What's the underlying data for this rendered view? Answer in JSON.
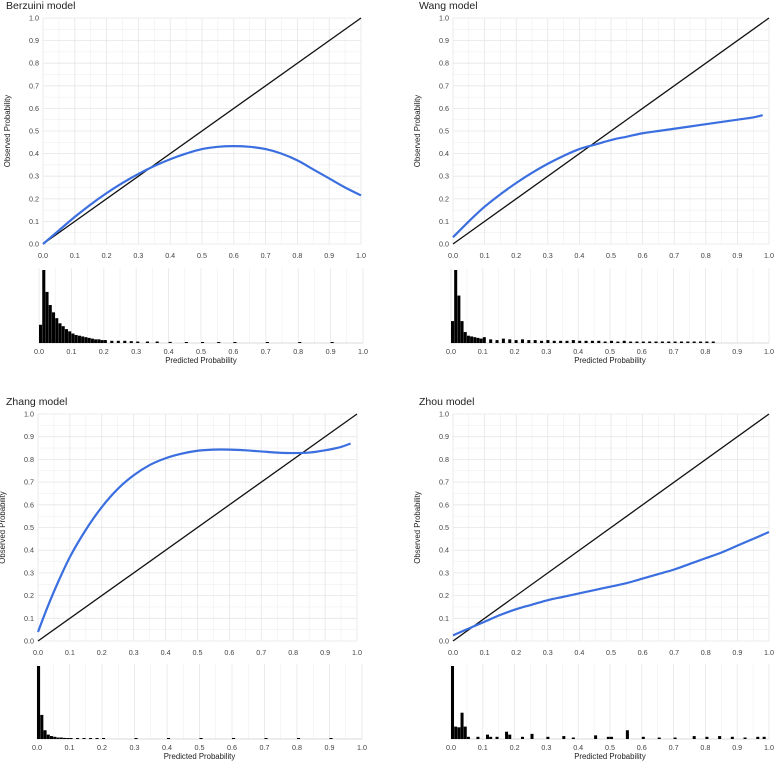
{
  "chart_data": [
    {
      "type": "line",
      "title": "Berzuini model",
      "xlabel": "",
      "ylabel": "Observed Probability",
      "xlim": [
        0,
        1
      ],
      "ylim": [
        0,
        1
      ],
      "xticks": [
        "0.0",
        "0.1",
        "0.2",
        "0.3",
        "0.4",
        "0.5",
        "0.6",
        "0.7",
        "0.8",
        "0.9",
        "1.0"
      ],
      "yticks": [
        "0.0",
        "0.1",
        "0.2",
        "0.3",
        "0.4",
        "0.5",
        "0.6",
        "0.7",
        "0.8",
        "0.9",
        "1.0"
      ],
      "grid": true,
      "colors": {
        "calibration": "#3b6fe0",
        "reference": "#111111",
        "histogram": "#000000",
        "grid": "#e6e6e6"
      },
      "reference_line": {
        "x": [
          0,
          1
        ],
        "y": [
          0,
          1
        ]
      },
      "calibration_curve": {
        "x": [
          0.0,
          0.05,
          0.1,
          0.15,
          0.2,
          0.25,
          0.3,
          0.35,
          0.4,
          0.45,
          0.5,
          0.55,
          0.6,
          0.65,
          0.7,
          0.75,
          0.8,
          0.85,
          0.9,
          0.95,
          1.0
        ],
        "y": [
          0.0,
          0.06,
          0.12,
          0.175,
          0.225,
          0.27,
          0.31,
          0.345,
          0.375,
          0.4,
          0.42,
          0.43,
          0.433,
          0.43,
          0.42,
          0.4,
          0.37,
          0.33,
          0.29,
          0.25,
          0.215
        ]
      },
      "histogram": {
        "xlabel": "Predicted Probability",
        "xlim": [
          0,
          1
        ],
        "xticks": [
          "0.0",
          "0.1",
          "0.2",
          "0.3",
          "0.4",
          "0.5",
          "0.6",
          "0.7",
          "0.8",
          "0.9",
          "1.0"
        ],
        "bin_width": 0.01,
        "x": [
          0.0,
          0.01,
          0.02,
          0.03,
          0.04,
          0.05,
          0.06,
          0.07,
          0.08,
          0.09,
          0.1,
          0.11,
          0.12,
          0.13,
          0.14,
          0.15,
          0.16,
          0.17,
          0.18,
          0.19,
          0.2,
          0.22,
          0.24,
          0.26,
          0.28,
          0.3,
          0.33,
          0.36,
          0.4,
          0.45,
          0.5,
          0.55,
          0.6,
          0.7,
          0.8,
          0.9
        ],
        "y": [
          0.25,
          1.0,
          0.7,
          0.52,
          0.42,
          0.34,
          0.27,
          0.23,
          0.19,
          0.16,
          0.13,
          0.11,
          0.1,
          0.09,
          0.08,
          0.07,
          0.06,
          0.05,
          0.05,
          0.04,
          0.04,
          0.03,
          0.03,
          0.03,
          0.025,
          0.02,
          0.02,
          0.02,
          0.015,
          0.012,
          0.01,
          0.01,
          0.01,
          0.008,
          0.006,
          0.005
        ]
      }
    },
    {
      "type": "line",
      "title": "Wang model",
      "xlabel": "",
      "ylabel": "Observed Probability",
      "xlim": [
        0,
        1
      ],
      "ylim": [
        0,
        1
      ],
      "xticks": [
        "0.0",
        "0.1",
        "0.2",
        "0.3",
        "0.4",
        "0.5",
        "0.6",
        "0.7",
        "0.8",
        "0.9",
        "1.0"
      ],
      "yticks": [
        "0.0",
        "0.1",
        "0.2",
        "0.3",
        "0.4",
        "0.5",
        "0.6",
        "0.7",
        "0.8",
        "0.9",
        "1.0"
      ],
      "grid": true,
      "colors": {
        "calibration": "#3b6fe0",
        "reference": "#111111",
        "histogram": "#000000",
        "grid": "#e6e6e6"
      },
      "reference_line": {
        "x": [
          0,
          1
        ],
        "y": [
          0,
          1
        ]
      },
      "calibration_curve": {
        "x": [
          0.0,
          0.05,
          0.1,
          0.15,
          0.2,
          0.25,
          0.3,
          0.35,
          0.4,
          0.45,
          0.5,
          0.55,
          0.6,
          0.65,
          0.7,
          0.75,
          0.8,
          0.85,
          0.9,
          0.95,
          0.98
        ],
        "y": [
          0.03,
          0.1,
          0.165,
          0.22,
          0.27,
          0.315,
          0.355,
          0.39,
          0.42,
          0.44,
          0.46,
          0.475,
          0.49,
          0.5,
          0.51,
          0.52,
          0.53,
          0.54,
          0.55,
          0.56,
          0.57
        ]
      },
      "histogram": {
        "xlabel": "Predicted Probability",
        "xlim": [
          0,
          1
        ],
        "xticks": [
          "0.0",
          "0.1",
          "0.2",
          "0.3",
          "0.4",
          "0.5",
          "0.6",
          "0.7",
          "0.8",
          "0.9",
          "1.0"
        ],
        "bin_width": 0.01,
        "x": [
          0.0,
          0.01,
          0.02,
          0.03,
          0.04,
          0.05,
          0.06,
          0.07,
          0.08,
          0.09,
          0.1,
          0.12,
          0.14,
          0.16,
          0.18,
          0.2,
          0.22,
          0.24,
          0.26,
          0.28,
          0.3,
          0.32,
          0.34,
          0.36,
          0.38,
          0.4,
          0.42,
          0.44,
          0.46,
          0.48,
          0.5,
          0.52,
          0.54,
          0.56,
          0.58,
          0.6,
          0.62,
          0.64,
          0.66,
          0.68,
          0.7,
          0.72,
          0.74,
          0.76,
          0.78,
          0.8,
          0.82
        ],
        "y": [
          0.3,
          1.0,
          0.65,
          0.3,
          0.15,
          0.1,
          0.09,
          0.08,
          0.07,
          0.06,
          0.08,
          0.05,
          0.04,
          0.06,
          0.05,
          0.04,
          0.05,
          0.04,
          0.04,
          0.03,
          0.04,
          0.03,
          0.03,
          0.03,
          0.04,
          0.03,
          0.03,
          0.03,
          0.03,
          0.02,
          0.03,
          0.02,
          0.03,
          0.02,
          0.02,
          0.02,
          0.02,
          0.02,
          0.02,
          0.02,
          0.02,
          0.02,
          0.02,
          0.02,
          0.02,
          0.02,
          0.02
        ]
      }
    },
    {
      "type": "line",
      "title": "Zhang model",
      "xlabel": "",
      "ylabel": "Observed Probability",
      "xlim": [
        0,
        1
      ],
      "ylim": [
        0,
        1
      ],
      "xticks": [
        "0.0",
        "0.1",
        "0.2",
        "0.3",
        "0.4",
        "0.5",
        "0.6",
        "0.7",
        "0.8",
        "0.9",
        "1.0"
      ],
      "yticks": [
        "0.0",
        "0.1",
        "0.2",
        "0.3",
        "0.4",
        "0.5",
        "0.6",
        "0.7",
        "0.8",
        "0.9",
        "1.0"
      ],
      "grid": true,
      "colors": {
        "calibration": "#3b6fe0",
        "reference": "#111111",
        "histogram": "#000000",
        "grid": "#e6e6e6"
      },
      "reference_line": {
        "x": [
          0,
          1
        ],
        "y": [
          0,
          1
        ]
      },
      "calibration_curve": {
        "x": [
          0.0,
          0.03,
          0.06,
          0.1,
          0.15,
          0.2,
          0.25,
          0.3,
          0.35,
          0.4,
          0.45,
          0.5,
          0.55,
          0.6,
          0.65,
          0.7,
          0.75,
          0.8,
          0.85,
          0.9,
          0.95,
          0.98
        ],
        "y": [
          0.04,
          0.15,
          0.25,
          0.37,
          0.49,
          0.59,
          0.67,
          0.73,
          0.775,
          0.805,
          0.825,
          0.838,
          0.843,
          0.843,
          0.84,
          0.835,
          0.83,
          0.828,
          0.83,
          0.84,
          0.855,
          0.87
        ]
      },
      "histogram": {
        "xlabel": "Predicted Probability",
        "xlim": [
          0,
          1
        ],
        "xticks": [
          "0.0",
          "0.1",
          "0.2",
          "0.3",
          "0.4",
          "0.5",
          "0.6",
          "0.7",
          "0.8",
          "0.9",
          "1.0"
        ],
        "bin_width": 0.01,
        "x": [
          0.0,
          0.01,
          0.02,
          0.03,
          0.04,
          0.05,
          0.06,
          0.07,
          0.08,
          0.09,
          0.1,
          0.12,
          0.14,
          0.16,
          0.18,
          0.2,
          0.3,
          0.4,
          0.5,
          0.6,
          0.7,
          0.8,
          0.9
        ],
        "y": [
          1.0,
          0.33,
          0.12,
          0.06,
          0.04,
          0.03,
          0.02,
          0.02,
          0.015,
          0.012,
          0.01,
          0.01,
          0.008,
          0.007,
          0.006,
          0.005,
          0.005,
          0.004,
          0.004,
          0.004,
          0.004,
          0.004,
          0.004
        ]
      }
    },
    {
      "type": "line",
      "title": "Zhou model",
      "xlabel": "",
      "ylabel": "Observed Probability",
      "xlim": [
        0,
        1
      ],
      "ylim": [
        0,
        1
      ],
      "xticks": [
        "0.0",
        "0.1",
        "0.2",
        "0.3",
        "0.4",
        "0.5",
        "0.6",
        "0.7",
        "0.8",
        "0.9",
        "1.0"
      ],
      "yticks": [
        "0.0",
        "0.1",
        "0.2",
        "0.3",
        "0.4",
        "0.5",
        "0.6",
        "0.7",
        "0.8",
        "0.9",
        "1.0"
      ],
      "grid": true,
      "colors": {
        "calibration": "#3b6fe0",
        "reference": "#111111",
        "histogram": "#000000",
        "grid": "#e6e6e6"
      },
      "reference_line": {
        "x": [
          0,
          1
        ],
        "y": [
          0,
          1
        ]
      },
      "calibration_curve": {
        "x": [
          0.0,
          0.05,
          0.1,
          0.15,
          0.2,
          0.25,
          0.3,
          0.35,
          0.4,
          0.45,
          0.5,
          0.55,
          0.6,
          0.65,
          0.7,
          0.75,
          0.8,
          0.85,
          0.9,
          0.95,
          1.0
        ],
        "y": [
          0.025,
          0.055,
          0.085,
          0.115,
          0.14,
          0.16,
          0.18,
          0.195,
          0.21,
          0.225,
          0.24,
          0.255,
          0.275,
          0.295,
          0.315,
          0.34,
          0.365,
          0.39,
          0.42,
          0.45,
          0.48
        ]
      },
      "histogram": {
        "xlabel": "Predicted Probability",
        "xlim": [
          0,
          1
        ],
        "xticks": [
          "0.0",
          "0.1",
          "0.2",
          "0.3",
          "0.4",
          "0.5",
          "0.6",
          "0.7",
          "0.8",
          "0.9",
          "1.0"
        ],
        "bin_width": 0.01,
        "x": [
          0.0,
          0.01,
          0.02,
          0.03,
          0.04,
          0.05,
          0.08,
          0.11,
          0.12,
          0.14,
          0.17,
          0.18,
          0.22,
          0.25,
          0.3,
          0.35,
          0.38,
          0.45,
          0.49,
          0.5,
          0.55,
          0.6,
          0.65,
          0.7,
          0.76,
          0.8,
          0.84,
          0.88,
          0.92,
          0.96,
          0.98
        ],
        "y": [
          1.0,
          0.17,
          0.16,
          0.36,
          0.17,
          0.03,
          0.03,
          0.06,
          0.03,
          0.03,
          0.1,
          0.06,
          0.03,
          0.07,
          0.03,
          0.04,
          0.02,
          0.05,
          0.03,
          0.03,
          0.12,
          0.03,
          0.02,
          0.02,
          0.04,
          0.03,
          0.04,
          0.03,
          0.02,
          0.03,
          0.03
        ]
      }
    }
  ]
}
